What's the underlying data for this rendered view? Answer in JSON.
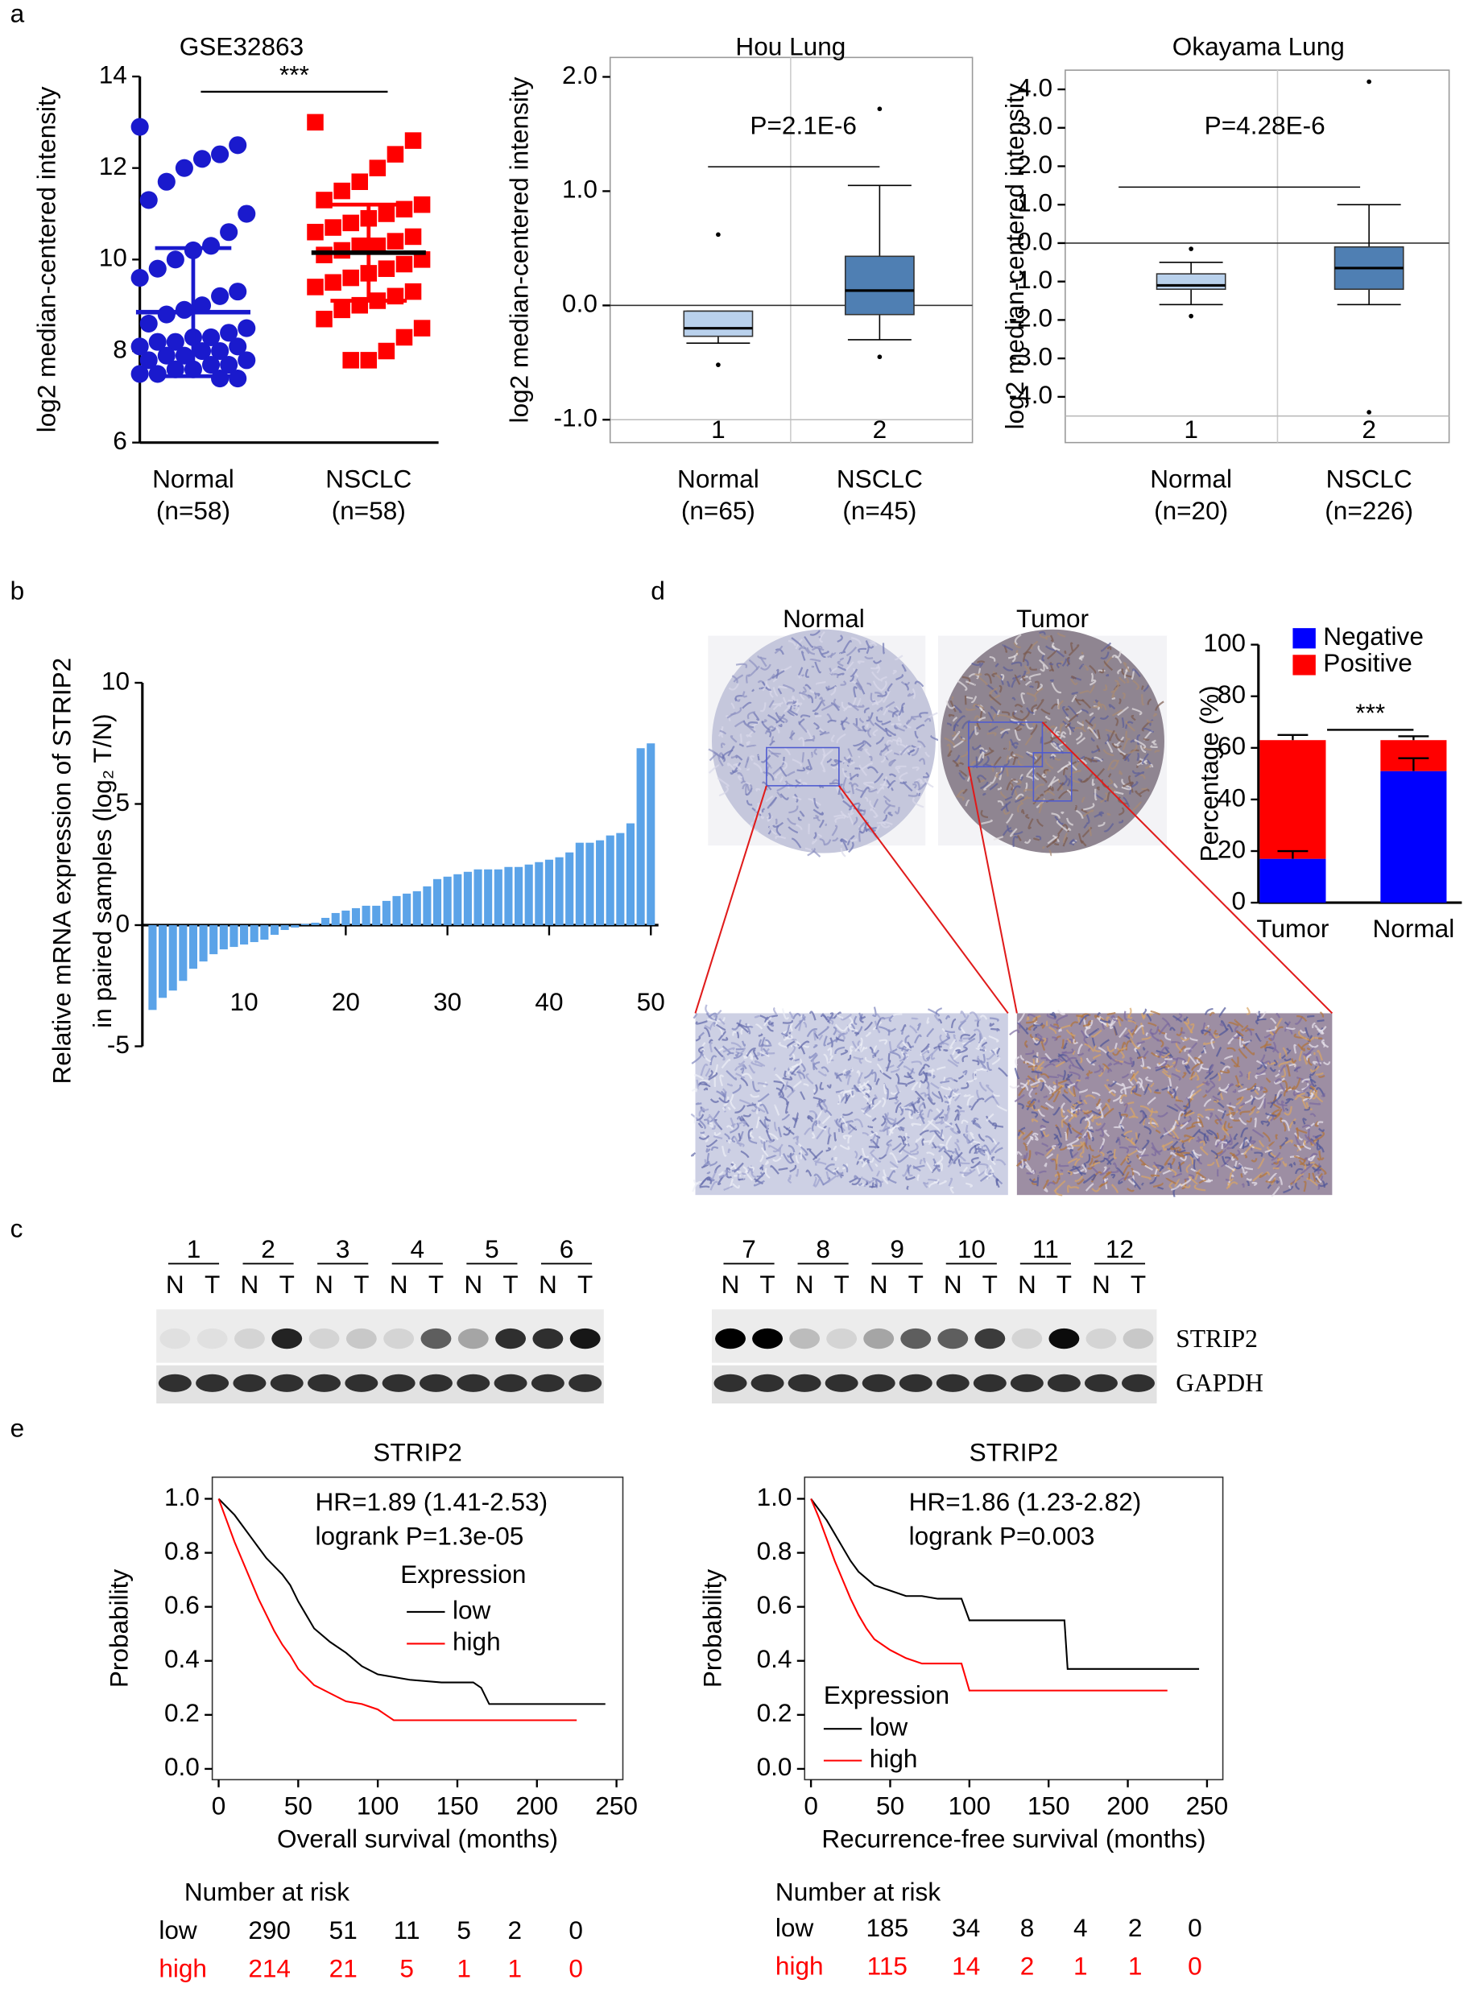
{
  "panel_labels": [
    "a",
    "b",
    "c",
    "d",
    "e"
  ],
  "ihc": {
    "labels": [
      "Normal",
      "Tumor"
    ]
  },
  "blot": {
    "lanes": [
      1,
      2,
      3,
      4,
      5,
      6,
      7,
      8,
      9,
      10,
      11,
      12
    ],
    "lane_letters": [
      "N",
      "T"
    ],
    "markers": [
      "STRIP2",
      "GAPDH"
    ]
  },
  "chart_data": [
    {
      "type": "dot",
      "title": "GSE32863",
      "ylabel": "log2 median-centered intensity",
      "categories": [
        "Normal",
        "NSCLC"
      ],
      "category_notes": [
        "(n=58)",
        "(n=58)"
      ],
      "markers": [
        "circle",
        "square"
      ],
      "colors": [
        "#1a1acd",
        "#ff0000"
      ],
      "points": [
        [
          12.9,
          12.5,
          12.3,
          12.2,
          12.0,
          11.7,
          11.3,
          11.0,
          10.6,
          10.3,
          10.2,
          10.0,
          9.8,
          9.6,
          9.3,
          9.2,
          9.0,
          8.9,
          8.8,
          8.6,
          8.5,
          8.4,
          8.3,
          8.3,
          8.2,
          8.2,
          8.1,
          8.1,
          8.0,
          8.0,
          7.9,
          7.9,
          7.8,
          7.8,
          7.7,
          7.7,
          7.6,
          7.6,
          7.5,
          7.5,
          7.4,
          7.4
        ],
        [
          13.0,
          12.6,
          12.3,
          12.0,
          11.7,
          11.5,
          11.3,
          11.2,
          11.1,
          11.0,
          10.9,
          10.8,
          10.7,
          10.6,
          10.5,
          10.4,
          10.3,
          10.3,
          10.2,
          10.1,
          10.0,
          9.9,
          9.8,
          9.7,
          9.6,
          9.5,
          9.4,
          9.3,
          9.2,
          9.1,
          9.0,
          8.9,
          8.7,
          8.5,
          8.3,
          8.0,
          7.8,
          7.8
        ]
      ],
      "means": [
        8.85,
        10.15
      ],
      "sd": [
        1.4,
        1.05
      ],
      "significance": "***",
      "ylim": [
        6,
        14
      ],
      "yticks": [
        6,
        8,
        10,
        12,
        14
      ]
    },
    {
      "type": "box",
      "title": "Hou Lung",
      "ylabel": "log2 median-centered intensity",
      "annotation": "P=2.1E-6",
      "categories": [
        "Normal",
        "NSCLC"
      ],
      "category_notes": [
        "(n=65)",
        "(n=45)"
      ],
      "box_ids": [
        1,
        2
      ],
      "colors": [
        "#b9d1ec",
        "#4f7fb3"
      ],
      "boxes": [
        {
          "whisker_low": -0.33,
          "q1": -0.27,
          "median": -0.2,
          "q3": -0.05,
          "whisker_high": -0.05,
          "outliers": [
            0.62,
            -0.52
          ]
        },
        {
          "whisker_low": -0.3,
          "q1": -0.08,
          "median": 0.13,
          "q3": 0.43,
          "whisker_high": 1.05,
          "outliers": [
            1.72,
            -0.45
          ]
        }
      ],
      "ref_lines": [
        0,
        -1
      ],
      "ylim": [
        -1.2,
        2.17
      ],
      "yticks": [
        {
          "value": -1,
          "label": "-1.0"
        },
        {
          "value": 0,
          "label": "0.0"
        },
        {
          "value": 1,
          "label": "1.0"
        },
        {
          "value": 2,
          "label": "2.0"
        }
      ]
    },
    {
      "type": "box",
      "title": "Okayama Lung",
      "ylabel": "log2 median-centered intensity",
      "annotation": "P=4.28E-6",
      "categories": [
        "Normal",
        "NSCLC"
      ],
      "category_notes": [
        "(n=20)",
        "(n=226)"
      ],
      "box_ids": [
        1,
        2
      ],
      "colors": [
        "#b9d1ec",
        "#4f7fb3"
      ],
      "boxes": [
        {
          "whisker_low": -1.6,
          "q1": -1.2,
          "median": -1.1,
          "q3": -0.8,
          "whisker_high": -0.5,
          "outliers": [
            -0.15,
            -1.9
          ]
        },
        {
          "whisker_low": -1.6,
          "q1": -1.2,
          "median": -0.65,
          "q3": -0.1,
          "whisker_high": 1.0,
          "outliers": [
            4.2,
            -4.4
          ]
        }
      ],
      "ref_lines": [
        0,
        -4.5
      ],
      "ylim": [
        -5.19,
        4.5
      ],
      "yticks": [
        {
          "value": -4,
          "label": "-4.0"
        },
        {
          "value": -3,
          "label": "-3.0"
        },
        {
          "value": -2,
          "label": "-2.0"
        },
        {
          "value": -1,
          "label": "-1.0"
        },
        {
          "value": 0,
          "label": "0.0"
        },
        {
          "value": 1,
          "label": "1.0"
        },
        {
          "value": 2,
          "label": "2.0"
        },
        {
          "value": 3,
          "label": "3.0"
        },
        {
          "value": 4,
          "label": "4.0"
        }
      ]
    },
    {
      "type": "bar",
      "ylabel": [
        "Relative mRNA expression of STRIP2",
        "in paired samples (log₂ T/N)"
      ],
      "color": "#5ba3e8",
      "x": [
        1,
        2,
        3,
        4,
        5,
        6,
        7,
        8,
        9,
        10,
        11,
        12,
        13,
        14,
        15,
        16,
        17,
        18,
        19,
        20,
        21,
        22,
        23,
        24,
        25,
        26,
        27,
        28,
        29,
        30,
        31,
        32,
        33,
        34,
        35,
        36,
        37,
        38,
        39,
        40,
        41,
        42,
        43,
        44,
        45,
        46,
        47,
        48,
        49,
        50
      ],
      "values": [
        -3.5,
        -3.0,
        -2.7,
        -2.3,
        -1.8,
        -1.5,
        -1.2,
        -1.0,
        -0.9,
        -0.8,
        -0.7,
        -0.6,
        -0.4,
        -0.2,
        -0.1,
        0.05,
        0.1,
        0.3,
        0.5,
        0.6,
        0.7,
        0.8,
        0.8,
        1.0,
        1.2,
        1.3,
        1.4,
        1.6,
        1.9,
        2.0,
        2.1,
        2.2,
        2.3,
        2.3,
        2.3,
        2.4,
        2.4,
        2.5,
        2.6,
        2.7,
        2.8,
        3.0,
        3.4,
        3.4,
        3.5,
        3.7,
        3.8,
        4.2,
        7.3,
        7.5
      ],
      "xlim": [
        0,
        50
      ],
      "xticks": [
        10,
        20,
        30,
        40,
        50
      ],
      "ylim": [
        -5,
        10
      ],
      "yticks": [
        -5,
        0,
        5,
        10
      ]
    },
    {
      "type": "stacked_bar",
      "ylabel": "Percentage (%)",
      "categories": [
        "Tumor",
        "Normal"
      ],
      "significance": "***",
      "series": [
        {
          "name": "Negative",
          "color": "#0000ff",
          "values": [
            17,
            51
          ],
          "errors": [
            3,
            5
          ]
        },
        {
          "name": "Positive",
          "color": "#ff0000",
          "values": [
            46,
            12
          ],
          "errors": [
            2,
            1.5
          ]
        }
      ],
      "ylim": [
        0,
        100
      ],
      "yticks": [
        0,
        20,
        40,
        60,
        80,
        100
      ]
    },
    {
      "type": "line",
      "title": "STRIP2",
      "xlabel": "Overall survival (months)",
      "ylabel": "Probability",
      "annotations": [
        "HR=1.89 (1.41-2.53)",
        "logrank P=1.3e-05"
      ],
      "legend_title": "Expression",
      "series": [
        {
          "name": "low",
          "color": "#000000",
          "x": [
            0,
            5,
            10,
            15,
            20,
            25,
            30,
            35,
            40,
            45,
            50,
            55,
            60,
            70,
            80,
            90,
            100,
            110,
            120,
            140,
            160,
            165,
            170,
            200,
            243
          ],
          "values": [
            1,
            0.97,
            0.94,
            0.9,
            0.86,
            0.82,
            0.78,
            0.75,
            0.72,
            0.68,
            0.62,
            0.57,
            0.52,
            0.47,
            0.43,
            0.38,
            0.35,
            0.34,
            0.33,
            0.32,
            0.32,
            0.3,
            0.24,
            0.24,
            0.24
          ]
        },
        {
          "name": "high",
          "color": "#ff0000",
          "x": [
            0,
            5,
            10,
            15,
            20,
            25,
            30,
            35,
            40,
            45,
            50,
            60,
            70,
            80,
            90,
            100,
            105,
            110,
            150,
            225
          ],
          "values": [
            1,
            0.92,
            0.84,
            0.77,
            0.7,
            0.63,
            0.57,
            0.51,
            0.46,
            0.42,
            0.37,
            0.31,
            0.28,
            0.25,
            0.24,
            0.22,
            0.2,
            0.18,
            0.18,
            0.18
          ]
        }
      ],
      "risk_table": {
        "title": "Number at risk",
        "rows": [
          {
            "name": "low",
            "color": "#000000",
            "values": [
              290,
              51,
              11,
              5,
              2,
              0
            ]
          },
          {
            "name": "high",
            "color": "#ff0000",
            "values": [
              214,
              21,
              5,
              1,
              1,
              0
            ]
          }
        ]
      },
      "xlim": [
        -4,
        254
      ],
      "xticks": [
        0,
        50,
        100,
        150,
        200,
        250
      ],
      "ylim": [
        -0.04,
        1.08
      ],
      "yticks": [
        {
          "value": 0,
          "label": "0.0"
        },
        {
          "value": 0.2,
          "label": "0.2"
        },
        {
          "value": 0.4,
          "label": "0.4"
        },
        {
          "value": 0.6,
          "label": "0.6"
        },
        {
          "value": 0.8,
          "label": "0.8"
        },
        {
          "value": 1,
          "label": "1.0"
        }
      ]
    },
    {
      "type": "line",
      "title": "STRIP2",
      "xlabel": "Recurrence-free survival (months)",
      "ylabel": "Probability",
      "annotations": [
        "HR=1.86 (1.23-2.82)",
        "logrank P=0.003"
      ],
      "legend_title": "Expression",
      "series": [
        {
          "name": "low",
          "color": "#000000",
          "x": [
            0,
            5,
            10,
            15,
            20,
            25,
            30,
            40,
            50,
            60,
            70,
            80,
            95,
            100,
            130,
            160,
            162,
            245
          ],
          "values": [
            1,
            0.96,
            0.92,
            0.87,
            0.82,
            0.77,
            0.73,
            0.68,
            0.66,
            0.64,
            0.64,
            0.63,
            0.63,
            0.55,
            0.55,
            0.55,
            0.37,
            0.37
          ]
        },
        {
          "name": "high",
          "color": "#ff0000",
          "x": [
            0,
            5,
            10,
            15,
            20,
            25,
            30,
            35,
            40,
            50,
            60,
            70,
            80,
            95,
            100,
            160,
            225
          ],
          "values": [
            1,
            0.93,
            0.85,
            0.77,
            0.7,
            0.63,
            0.57,
            0.52,
            0.48,
            0.44,
            0.41,
            0.39,
            0.39,
            0.39,
            0.29,
            0.29,
            0.29
          ]
        }
      ],
      "risk_table": {
        "title": "Number at risk",
        "rows": [
          {
            "name": "low",
            "color": "#000000",
            "values": [
              185,
              34,
              8,
              4,
              2,
              0
            ]
          },
          {
            "name": "high",
            "color": "#ff0000",
            "values": [
              115,
              14,
              2,
              1,
              1,
              0
            ]
          }
        ]
      },
      "xlim": [
        -4,
        260
      ],
      "xticks": [
        0,
        50,
        100,
        150,
        200,
        250
      ],
      "ylim": [
        -0.04,
        1.08
      ],
      "yticks": [
        {
          "value": 0,
          "label": "0.0"
        },
        {
          "value": 0.2,
          "label": "0.2"
        },
        {
          "value": 0.4,
          "label": "0.4"
        },
        {
          "value": 0.6,
          "label": "0.6"
        },
        {
          "value": 0.8,
          "label": "0.8"
        },
        {
          "value": 1,
          "label": "1.0"
        }
      ]
    }
  ]
}
